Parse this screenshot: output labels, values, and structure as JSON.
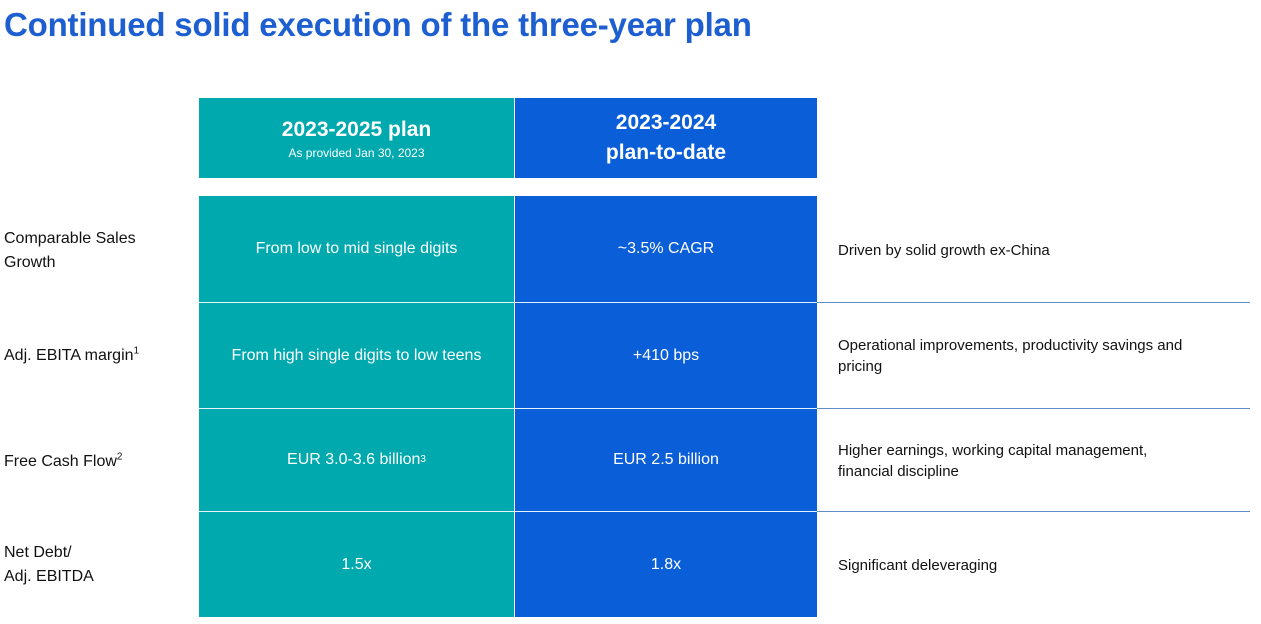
{
  "title": "Continued solid execution of the three-year plan",
  "header": {
    "plan_title": "2023-2025 plan",
    "plan_subtitle": "As provided Jan 30, 2023",
    "todate_line1": "2023-2024",
    "todate_line2": "plan-to-date"
  },
  "rows": [
    {
      "label_line1": "Comparable Sales",
      "label_line2": "Growth",
      "plan": "From low to mid single digits",
      "todate": "~3.5% CAGR",
      "note_line1": "Driven by solid growth ex-China",
      "note_line2": ""
    },
    {
      "label_line1": "Adj. EBITA margin",
      "label_sup": "1",
      "plan": "From high single digits to low teens",
      "todate": "+410 bps",
      "note_line1": "Operational improvements, productivity savings and",
      "note_line2": "pricing"
    },
    {
      "label_line1": "Free Cash Flow",
      "label_sup": "2",
      "plan": "EUR 3.0-3.6 billion",
      "plan_sup": "3",
      "todate": "EUR 2.5 billion",
      "note_line1": "Higher earnings, working capital management,",
      "note_line2": "financial discipline"
    },
    {
      "label_line1": "Net Debt/",
      "label_line2": "Adj. EBITDA",
      "plan": "1.5x",
      "todate": "1.8x",
      "note_line1": "Significant deleveraging",
      "note_line2": ""
    }
  ],
  "colors": {
    "title": "#1d5fd0",
    "plan_teal": "#00a9ae",
    "todate_blue": "#0a5ed8"
  }
}
